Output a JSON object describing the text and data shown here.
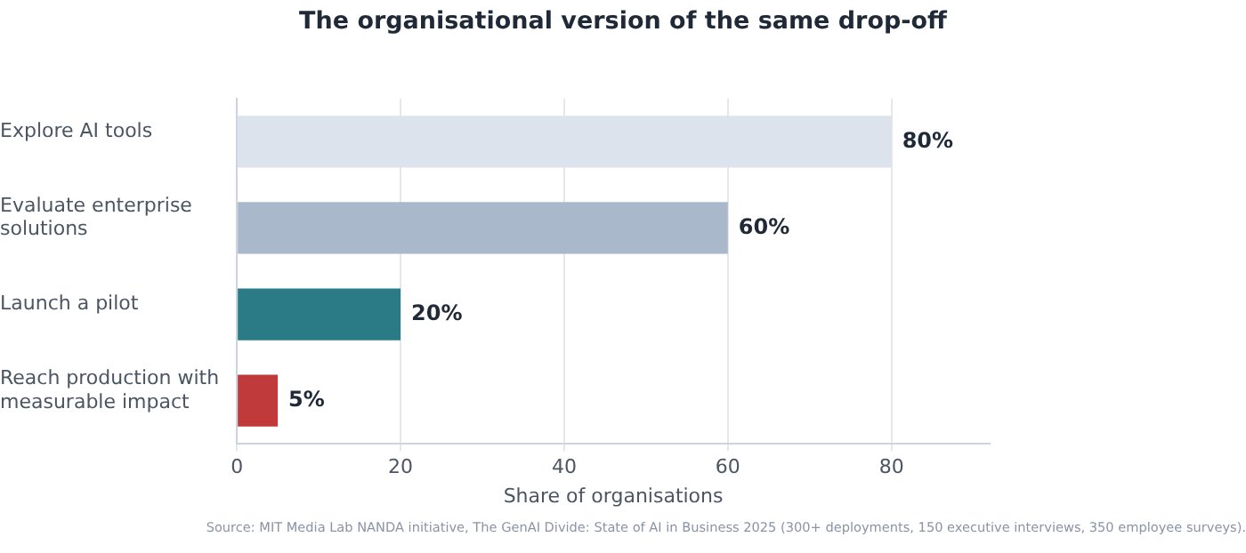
{
  "chart_data": {
    "type": "bar",
    "orientation": "horizontal",
    "title": "The organisational version of the same drop-off",
    "xlabel": "Share of organisations",
    "categories": [
      "Explore AI tools",
      "Evaluate enterprise\nsolutions",
      "Launch a pilot",
      "Reach production with\nmeasurable impact"
    ],
    "values": [
      80,
      60,
      20,
      5
    ],
    "colors": [
      "#dce3ed",
      "#a9b8cb",
      "#2a7b85",
      "#c0393b"
    ],
    "value_labels": [
      "80%",
      "60%",
      "20%",
      "5%"
    ],
    "xlim": [
      0,
      92
    ],
    "xticks": [
      0,
      20,
      40,
      60,
      80
    ],
    "grid": "x",
    "legend": false,
    "annotations": [
      "Source: MIT Media Lab NANDA initiative, The GenAI Divide: State of AI in Business 2025 (300+ deployments, 150 executive interviews, 350 employee surveys)."
    ]
  }
}
